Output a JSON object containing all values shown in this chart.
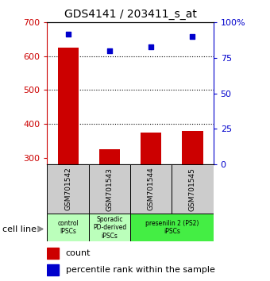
{
  "title": "GDS4141 / 203411_s_at",
  "samples": [
    "GSM701542",
    "GSM701543",
    "GSM701544",
    "GSM701545"
  ],
  "counts": [
    625,
    325,
    375,
    380
  ],
  "percentiles": [
    92,
    80,
    83,
    90
  ],
  "ylim_left": [
    280,
    700
  ],
  "ylim_right": [
    0,
    100
  ],
  "yticks_left": [
    300,
    400,
    500,
    600,
    700
  ],
  "yticks_right": [
    0,
    25,
    50,
    75,
    100
  ],
  "bar_color": "#cc0000",
  "dot_color": "#0000cc",
  "bar_width": 0.5,
  "group_defs": [
    [
      0,
      1,
      "control\nIPSCs",
      "#bbffbb"
    ],
    [
      1,
      2,
      "Sporadic\nPD-derived\niPSCs",
      "#bbffbb"
    ],
    [
      2,
      4,
      "presenilin 2 (PS2)\niPSCs",
      "#44ee44"
    ]
  ],
  "legend_count_label": "count",
  "legend_pct_label": "percentile rank within the sample",
  "cell_line_label": "cell line",
  "left_ylabel_color": "#cc0000",
  "right_ylabel_color": "#0000cc",
  "grid_yticks": [
    400,
    500,
    600
  ],
  "sample_box_color": "#cccccc",
  "dot_size": 25
}
